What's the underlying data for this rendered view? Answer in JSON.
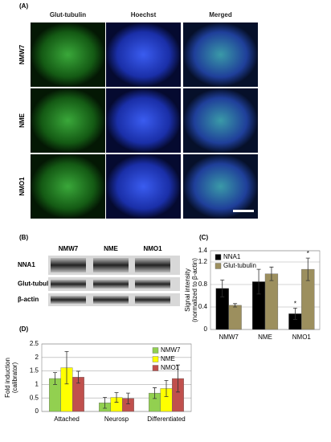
{
  "panel_a": {
    "label": "(A)",
    "columns": [
      "Glut-tubulin",
      "Hoechst",
      "Merged"
    ],
    "rows": [
      "NMW7",
      "NME",
      "NMO1"
    ]
  },
  "panel_b": {
    "label": "(B)",
    "columns": [
      "NMW7",
      "NME",
      "NMO1"
    ],
    "rows": [
      "NNA1",
      "Glut-tubulin",
      "β-actin"
    ]
  },
  "chart_data": [
    {
      "type": "bar",
      "label": "(C)",
      "ylabel": [
        "Signal intensity",
        "(normalized to β-actin)"
      ],
      "categories": [
        "NMW7",
        "NME",
        "NMO1"
      ],
      "series": [
        {
          "name": "NNA1",
          "color": "#000000",
          "values": [
            0.73,
            0.85,
            0.28
          ],
          "errors": [
            0.15,
            0.22,
            0.1
          ],
          "annotations": [
            null,
            null,
            "*"
          ]
        },
        {
          "name": "Glut-tubulin",
          "color": "#9c8f5e",
          "values": [
            0.43,
            0.99,
            1.07
          ],
          "errors": [
            0.03,
            0.12,
            0.2
          ],
          "annotations": [
            null,
            null,
            "*"
          ]
        }
      ],
      "ylim": [
        0,
        1.4
      ],
      "yticks": [
        0,
        0.4,
        0.8,
        1.2,
        1.4
      ],
      "grid": true,
      "legend": "upper left"
    },
    {
      "type": "bar",
      "label": "(D)",
      "ylabel": [
        "Fold induction",
        "(calibrator)"
      ],
      "categories": [
        "Attached",
        "Neurosp",
        "Differentiated"
      ],
      "series": [
        {
          "name": "NMW7",
          "color": "#92d050",
          "values": [
            1.22,
            0.32,
            0.68
          ],
          "errors": [
            0.22,
            0.2,
            0.2
          ]
        },
        {
          "name": "NME",
          "color": "#ffff00",
          "values": [
            1.62,
            0.52,
            0.85
          ],
          "errors": [
            0.6,
            0.18,
            0.3
          ]
        },
        {
          "name": "NMO1",
          "color": "#c0504d",
          "values": [
            1.27,
            0.48,
            1.22
          ],
          "errors": [
            0.22,
            0.2,
            0.5
          ]
        }
      ],
      "ylim": [
        0,
        2.5
      ],
      "yticks": [
        0,
        0.5,
        1,
        1.5,
        2,
        2.5
      ],
      "grid": true,
      "legend": "upper right"
    }
  ]
}
